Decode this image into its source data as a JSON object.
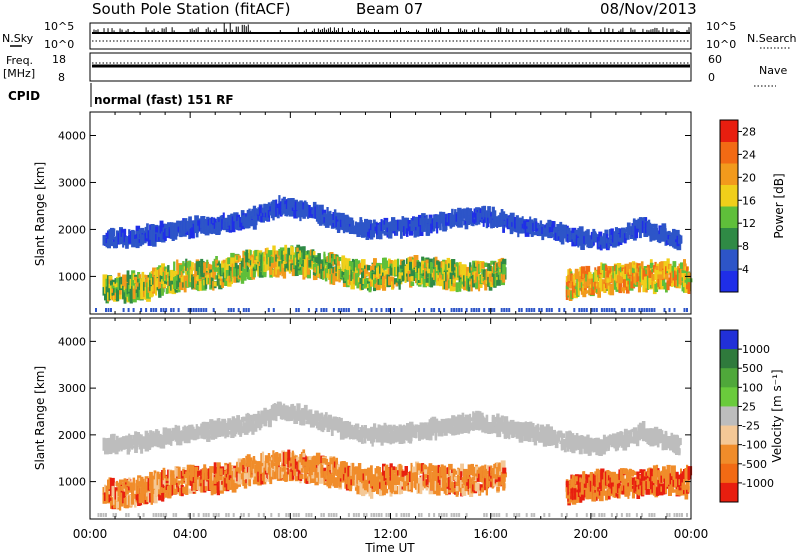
{
  "header": {
    "station": "South Pole Station (fitACF)",
    "beam": "Beam 07",
    "date": "08/Nov/2013"
  },
  "sky_panel": {
    "left_label": "N.Sky",
    "right_label": "N.Search",
    "y_ticks": [
      "10^5",
      "10^0"
    ]
  },
  "freq_panel": {
    "left_label_top": "Freq.",
    "left_label_unit": "[MHz]",
    "left_ticks": [
      "18",
      "8"
    ],
    "right_label": "Nave",
    "right_ticks": [
      "60",
      "0"
    ]
  },
  "cpid": {
    "label": "CPID",
    "value": "normal (fast) 151 RF"
  },
  "x_axis": {
    "label": "Time UT",
    "tick_labels": [
      "00:00",
      "04:00",
      "08:00",
      "12:00",
      "16:00",
      "20:00",
      "00:00"
    ]
  },
  "colors": {
    "power_scale": [
      "#1f2ee8",
      "#2d55c8",
      "#2f8a45",
      "#5fbf3a",
      "#f0cf1a",
      "#f29a1c",
      "#f26a14",
      "#e81e0f"
    ],
    "velocity_scale": [
      "#2130d8",
      "#2f7a3c",
      "#4fa83a",
      "#6acb3c",
      "#bdbdbd",
      "#f4c896",
      "#f08c2a",
      "#f26a14",
      "#e81e0f"
    ]
  },
  "chart_data": [
    {
      "type": "heatmap",
      "title": "Power",
      "xlabel": "",
      "ylabel": "Slant Range [km]",
      "x_domain_hours": [
        0,
        24
      ],
      "ylim": [
        200,
        4500
      ],
      "y_ticks": [
        1000,
        2000,
        3000,
        4000
      ],
      "colorbar": {
        "label": "Power [dB]",
        "tick_labels": [
          "4",
          "8",
          "12",
          "16",
          "20",
          "24",
          "28"
        ],
        "range": [
          0,
          30
        ]
      },
      "bands": [
        {
          "name": "upper_arc",
          "points": [
            [
              0.5,
              1800
            ],
            [
              2,
              1850
            ],
            [
              3.5,
              2000
            ],
            [
              5,
              2100
            ],
            [
              6.5,
              2250
            ],
            [
              7.5,
              2500
            ],
            [
              8.5,
              2400
            ],
            [
              10,
              2150
            ],
            [
              11,
              2000
            ],
            [
              12.5,
              2050
            ],
            [
              14,
              2150
            ],
            [
              15.5,
              2300
            ],
            [
              17,
              2100
            ],
            [
              18.5,
              1950
            ],
            [
              20,
              1750
            ],
            [
              21,
              1850
            ],
            [
              22,
              2050
            ],
            [
              23.5,
              1750
            ]
          ],
          "level": 6
        },
        {
          "name": "lower_echoes_morning",
          "points": [
            [
              0.5,
              700
            ],
            [
              2,
              800
            ],
            [
              3.5,
              1000
            ],
            [
              5,
              1050
            ],
            [
              6.5,
              1250
            ],
            [
              8,
              1350
            ],
            [
              9.5,
              1200
            ],
            [
              11,
              1000
            ],
            [
              13,
              1100
            ],
            [
              15,
              1000
            ],
            [
              16.5,
              1100
            ]
          ],
          "level": 12
        },
        {
          "name": "lower_echoes_evening",
          "points": [
            [
              19,
              800
            ],
            [
              20.5,
              950
            ],
            [
              22,
              1000
            ],
            [
              23.9,
              1000
            ]
          ],
          "level": 16
        }
      ]
    },
    {
      "type": "heatmap",
      "title": "Velocity",
      "xlabel": "Time UT",
      "ylabel": "Slant Range [km]",
      "x_domain_hours": [
        0,
        24
      ],
      "ylim": [
        200,
        4500
      ],
      "y_ticks": [
        1000,
        2000,
        3000,
        4000
      ],
      "colorbar": {
        "label": "Velocity [m s⁻¹]",
        "tick_labels": [
          "1000",
          "500",
          "100",
          "25",
          "-25",
          "-100",
          "-500",
          "-1000"
        ],
        "range": [
          -1000,
          1000
        ]
      },
      "bands": [
        {
          "name": "upper_arc",
          "points": [
            [
              0.5,
              1800
            ],
            [
              2,
              1850
            ],
            [
              3.5,
              2000
            ],
            [
              5,
              2100
            ],
            [
              6.5,
              2250
            ],
            [
              7.5,
              2500
            ],
            [
              8.5,
              2400
            ],
            [
              10,
              2150
            ],
            [
              11,
              2000
            ],
            [
              12.5,
              2050
            ],
            [
              14,
              2150
            ],
            [
              15.5,
              2300
            ],
            [
              17,
              2100
            ],
            [
              18.5,
              1950
            ],
            [
              20,
              1750
            ],
            [
              21,
              1850
            ],
            [
              22,
              2050
            ],
            [
              23.5,
              1750
            ]
          ],
          "level": 0
        },
        {
          "name": "lower_echoes_morning",
          "points": [
            [
              0.5,
              700
            ],
            [
              2,
              800
            ],
            [
              3.5,
              1000
            ],
            [
              5,
              1050
            ],
            [
              6.5,
              1250
            ],
            [
              8,
              1350
            ],
            [
              9.5,
              1200
            ],
            [
              11,
              1000
            ],
            [
              13,
              1100
            ],
            [
              15,
              1000
            ],
            [
              16.5,
              1100
            ]
          ],
          "level": -300
        },
        {
          "name": "lower_echoes_evening",
          "points": [
            [
              19,
              800
            ],
            [
              20.5,
              950
            ],
            [
              22,
              1000
            ],
            [
              23.9,
              1000
            ]
          ],
          "level": -400
        }
      ]
    }
  ]
}
